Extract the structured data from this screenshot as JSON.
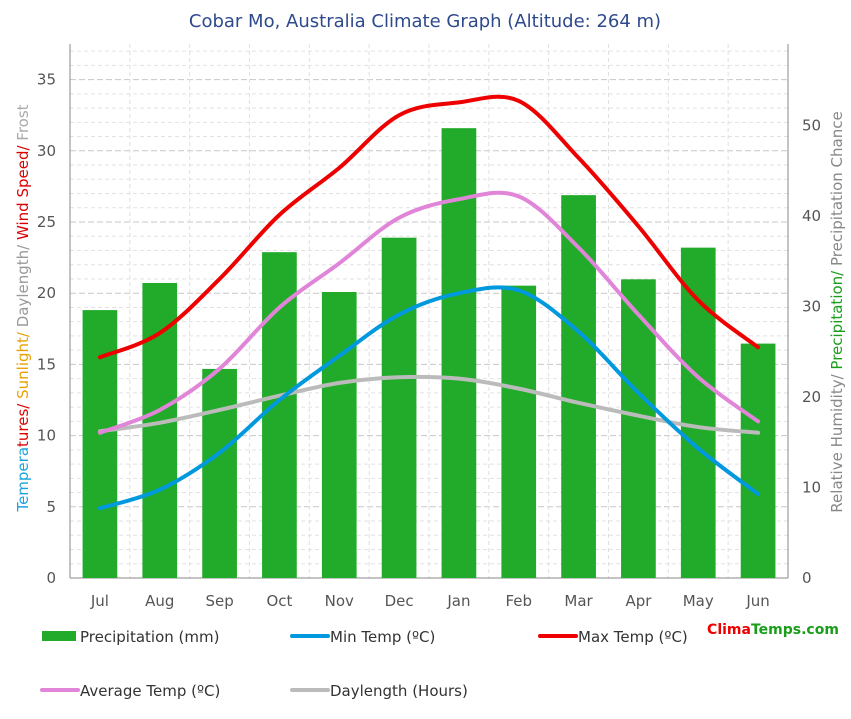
{
  "chart_data": {
    "type": "bar",
    "title": "Cobar Mo, Australia Climate Graph (Altitude: 264 m)",
    "categories": [
      "Jul",
      "Aug",
      "Sep",
      "Oct",
      "Nov",
      "Dec",
      "Jan",
      "Feb",
      "Mar",
      "Apr",
      "May",
      "Jun"
    ],
    "left_axis": {
      "label_parts": [
        {
          "text": "Tempera",
          "color": "#1aa3dd"
        },
        {
          "text": "tures/",
          "color": "#dd0000"
        },
        {
          "text": " Sunlight/",
          "color": "#e8a000"
        },
        {
          "text": " Daylength/",
          "color": "#999999"
        },
        {
          "text": " Wind Speed/",
          "color": "#dd0000"
        },
        {
          "text": " Frost",
          "color": "#aaaaaa"
        }
      ],
      "ylim": [
        0,
        37.5
      ],
      "ticks": [
        0,
        5,
        10,
        15,
        20,
        25,
        30,
        35
      ]
    },
    "right_axis": {
      "label_parts": [
        {
          "text": "Relative Humidity/",
          "color": "#888888"
        },
        {
          "text": " Precipitation/",
          "color": "#1a9e1a"
        },
        {
          "text": " Precipitation Chance",
          "color": "#888888"
        }
      ],
      "ylim": [
        0,
        59
      ],
      "ticks": [
        0,
        10,
        20,
        30,
        40,
        50
      ]
    },
    "series": [
      {
        "name": "Precipitation (mm)",
        "kind": "bar",
        "axis": "right",
        "color": "#22aa2a",
        "values": [
          29.6,
          32.6,
          23.1,
          36.0,
          31.6,
          37.6,
          49.7,
          32.3,
          42.3,
          33.0,
          36.5,
          25.9
        ]
      },
      {
        "name": "Min Temp (ºC)",
        "kind": "line",
        "axis": "left",
        "color": "#0099dd",
        "values": [
          4.9,
          6.2,
          8.8,
          12.5,
          15.6,
          18.5,
          20.0,
          20.2,
          17.3,
          13.0,
          9.1,
          5.9
        ]
      },
      {
        "name": "Max Temp (ºC)",
        "kind": "line",
        "axis": "left",
        "color": "#ee0000",
        "values": [
          15.5,
          17.2,
          21.0,
          25.5,
          28.8,
          32.5,
          33.4,
          33.5,
          29.5,
          24.7,
          19.5,
          16.2
        ]
      },
      {
        "name": "Average Temp (ºC)",
        "kind": "line",
        "axis": "left",
        "color": "#e085d8",
        "values": [
          10.2,
          11.8,
          14.7,
          19.0,
          22.1,
          25.3,
          26.6,
          26.8,
          23.2,
          18.5,
          14.1,
          11.0
        ]
      },
      {
        "name": "Daylength (Hours)",
        "kind": "line",
        "axis": "left",
        "color": "#bbbbbb",
        "values": [
          10.3,
          10.9,
          11.8,
          12.8,
          13.7,
          14.1,
          14.0,
          13.3,
          12.3,
          11.4,
          10.6,
          10.2
        ]
      }
    ],
    "legend": {
      "placement": "bottom",
      "columns": 3
    },
    "grid": true
  },
  "brand": {
    "part1": "Clima",
    "part2": "Temps",
    "part3": ".com",
    "color1": "#ee0000",
    "color2": "#1a9e1a"
  }
}
